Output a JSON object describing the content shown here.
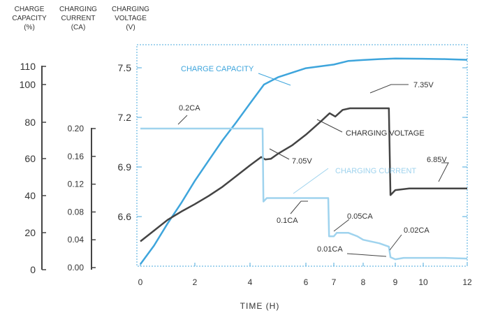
{
  "chart_data": {
    "type": "line",
    "xlabel": "TIME (H)",
    "xticks": [
      "0",
      "2",
      "4",
      "6",
      "7",
      "8",
      "9",
      "10",
      "12"
    ],
    "axes": {
      "capacity": {
        "label": [
          "CHARGE",
          "CAPACITY",
          "(%)"
        ],
        "ticks": [
          0,
          20,
          40,
          60,
          80,
          100,
          110
        ],
        "range": [
          0,
          110
        ]
      },
      "current": {
        "label": [
          "CHARGING",
          "CURRENT",
          "(CA)"
        ],
        "ticks": [
          "0.00",
          "0.04",
          "0.08",
          "0.12",
          "0.16",
          "0.20"
        ],
        "range": [
          0,
          0.2
        ]
      },
      "voltage": {
        "label": [
          "CHARGING",
          "VOLTAGE",
          "(V)"
        ],
        "ticks": [
          "6.6",
          "6.9",
          "7.2",
          "7.5"
        ]
      }
    },
    "series": [
      {
        "name": "CHARGE CAPACITY",
        "color": "#3ea5dc",
        "points": [
          [
            0,
            3
          ],
          [
            0.5,
            13
          ],
          [
            1,
            25
          ],
          [
            1.5,
            36
          ],
          [
            2,
            48
          ],
          [
            2.5,
            59
          ],
          [
            3,
            70
          ],
          [
            3.5,
            80
          ],
          [
            4,
            90
          ],
          [
            4.5,
            100
          ],
          [
            5,
            104
          ],
          [
            6,
            109
          ],
          [
            7,
            111
          ],
          [
            7.5,
            113
          ],
          [
            8,
            113.5
          ],
          [
            8.5,
            114
          ],
          [
            9,
            114.3
          ],
          [
            10,
            114.2
          ],
          [
            11,
            114
          ],
          [
            12,
            113.6
          ]
        ]
      },
      {
        "name": "CHARGING VOLTAGE",
        "color": "#444444",
        "points": [
          [
            0,
            6.45
          ],
          [
            0.5,
            6.515
          ],
          [
            1,
            6.58
          ],
          [
            1.5,
            6.63
          ],
          [
            2,
            6.675
          ],
          [
            2.5,
            6.725
          ],
          [
            3,
            6.78
          ],
          [
            3.5,
            6.845
          ],
          [
            4,
            6.91
          ],
          [
            4.4,
            6.96
          ],
          [
            4.55,
            6.945
          ],
          [
            4.75,
            6.95
          ],
          [
            5,
            6.98
          ],
          [
            5.5,
            7.03
          ],
          [
            6,
            7.095
          ],
          [
            6.5,
            7.17
          ],
          [
            6.85,
            7.225
          ],
          [
            7.05,
            7.205
          ],
          [
            7.3,
            7.245
          ],
          [
            7.55,
            7.255
          ],
          [
            8,
            7.255
          ],
          [
            8.7,
            7.255
          ],
          [
            8.8,
            7.255
          ],
          [
            8.85,
            6.73
          ],
          [
            9,
            6.76
          ],
          [
            9.5,
            6.77
          ],
          [
            10,
            6.77
          ],
          [
            11,
            6.77
          ],
          [
            12,
            6.77
          ]
        ]
      },
      {
        "name": "CHARGING CURRENT",
        "color": "#9fd3ee",
        "points": [
          [
            0,
            0.2
          ],
          [
            4.45,
            0.2
          ],
          [
            4.48,
            0.095
          ],
          [
            4.6,
            0.1
          ],
          [
            5,
            0.1
          ],
          [
            6,
            0.1
          ],
          [
            6.8,
            0.1
          ],
          [
            6.83,
            0.045
          ],
          [
            7,
            0.045
          ],
          [
            7.1,
            0.05
          ],
          [
            7.5,
            0.05
          ],
          [
            7.8,
            0.045
          ],
          [
            8,
            0.04
          ],
          [
            8.5,
            0.035
          ],
          [
            8.8,
            0.03
          ],
          [
            8.85,
            0.015
          ],
          [
            9,
            0.012
          ],
          [
            9.3,
            0.014
          ],
          [
            10,
            0.014
          ],
          [
            11,
            0.014
          ],
          [
            12,
            0.013
          ]
        ]
      }
    ],
    "annotations": [
      "0.2CA",
      "7.05V",
      "7.35V",
      "6.85V",
      "0.1CA",
      "0.05CA",
      "0.02CA",
      "0.01CA"
    ],
    "grid": false,
    "plot_border": "dashed"
  }
}
